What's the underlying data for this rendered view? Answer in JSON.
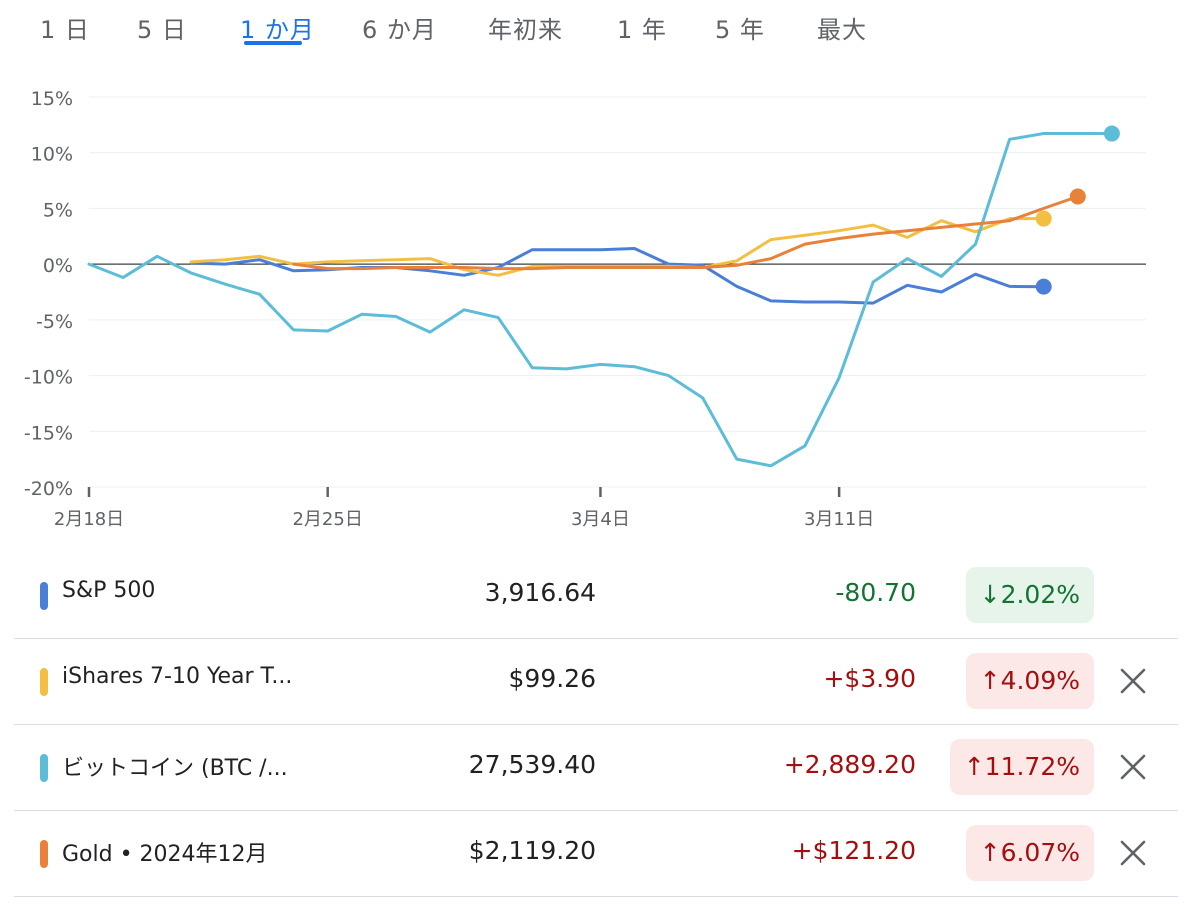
{
  "tabs": {
    "items": [
      "1 日",
      "5 日",
      "1 か月",
      "6 か月",
      "年初来",
      "1 年",
      "5 年",
      "最大"
    ],
    "active_index": 2
  },
  "chart_data": {
    "type": "line",
    "title": "",
    "xlabel": "",
    "ylabel": "",
    "ylim": [
      -20,
      15
    ],
    "yticks": [
      15,
      10,
      5,
      0,
      -5,
      -10,
      -15,
      -20
    ],
    "ytick_labels": [
      "15%",
      "10%",
      "5%",
      "0%",
      "-5%",
      "-10%",
      "-15%",
      "-20%"
    ],
    "xlim": [
      "2024-02-18",
      "2024-03-20"
    ],
    "xticks": [
      "2024-02-18",
      "2024-02-25",
      "2024-03-04",
      "2024-03-11"
    ],
    "xtick_labels": [
      "2月18日",
      "2月25日",
      "3月4日",
      "3月11日"
    ],
    "grid": true,
    "legend": "table below chart",
    "series": [
      {
        "name": "S&P 500",
        "color": "#4a7fd8",
        "x": [
          "2024-02-21",
          "2024-02-22",
          "2024-02-23",
          "2024-02-24",
          "2024-02-25",
          "2024-02-26",
          "2024-02-27",
          "2024-02-28",
          "2024-02-29",
          "2024-03-01",
          "2024-03-02",
          "2024-03-03",
          "2024-03-04",
          "2024-03-05",
          "2024-03-06",
          "2024-03-07",
          "2024-03-08",
          "2024-03-09",
          "2024-03-10",
          "2024-03-11",
          "2024-03-12",
          "2024-03-13",
          "2024-03-14",
          "2024-03-15",
          "2024-03-16",
          "2024-03-17"
        ],
        "y": [
          0.1,
          0,
          0.4,
          -0.6,
          -0.5,
          -0.3,
          -0.3,
          -0.6,
          -1.0,
          -0.3,
          1.3,
          1.3,
          1.3,
          1.4,
          0,
          -0.1,
          -2.0,
          -3.3,
          -3.4,
          -3.4,
          -3.5,
          -1.9,
          -2.5,
          -0.9,
          -2.0,
          -2.02
        ]
      },
      {
        "name": "iShares 7-10 Year T...",
        "color": "#f2bf42",
        "x": [
          "2024-02-21",
          "2024-02-22",
          "2024-02-23",
          "2024-02-24",
          "2024-02-25",
          "2024-02-26",
          "2024-02-27",
          "2024-02-28",
          "2024-02-29",
          "2024-03-01",
          "2024-03-02",
          "2024-03-03",
          "2024-03-04",
          "2024-03-05",
          "2024-03-06",
          "2024-03-07",
          "2024-03-08",
          "2024-03-09",
          "2024-03-10",
          "2024-03-11",
          "2024-03-12",
          "2024-03-13",
          "2024-03-14",
          "2024-03-15",
          "2024-03-16",
          "2024-03-17"
        ],
        "y": [
          0.2,
          0.4,
          0.7,
          0,
          0.2,
          0.3,
          0.4,
          0.5,
          -0.5,
          -1.0,
          -0.2,
          -0.2,
          -0.2,
          -0.2,
          -0.2,
          -0.3,
          0.3,
          2.2,
          2.6,
          3.0,
          3.5,
          2.4,
          3.9,
          2.9,
          4.09,
          4.09
        ]
      },
      {
        "name": "ビットコイン (BTC /...",
        "color": "#5dbcd8",
        "x": [
          "2024-02-18",
          "2024-02-19",
          "2024-02-20",
          "2024-02-21",
          "2024-02-22",
          "2024-02-23",
          "2024-02-24",
          "2024-02-25",
          "2024-02-26",
          "2024-02-27",
          "2024-02-28",
          "2024-02-29",
          "2024-03-01",
          "2024-03-02",
          "2024-03-03",
          "2024-03-04",
          "2024-03-05",
          "2024-03-06",
          "2024-03-07",
          "2024-03-08",
          "2024-03-09",
          "2024-03-10",
          "2024-03-11",
          "2024-03-12",
          "2024-03-13",
          "2024-03-14",
          "2024-03-15",
          "2024-03-16",
          "2024-03-17",
          "2024-03-18",
          "2024-03-19"
        ],
        "y": [
          0,
          -1.2,
          0.7,
          -0.8,
          -1.8,
          -2.7,
          -5.9,
          -6.0,
          -4.5,
          -4.7,
          -6.1,
          -4.1,
          -4.8,
          -9.3,
          -9.4,
          -9.0,
          -9.2,
          -10.0,
          -12.0,
          -17.5,
          -18.1,
          -16.3,
          -10.2,
          -1.6,
          0.5,
          -1.1,
          1.8,
          11.2,
          11.72,
          11.72,
          11.72
        ]
      },
      {
        "name": "Gold • 2024年12月",
        "color": "#e8823a",
        "x": [
          "2024-02-24",
          "2024-02-25",
          "2024-02-26",
          "2024-02-27",
          "2024-02-28",
          "2024-02-29",
          "2024-03-01",
          "2024-03-02",
          "2024-03-03",
          "2024-03-04",
          "2024-03-05",
          "2024-03-06",
          "2024-03-07",
          "2024-03-08",
          "2024-03-09",
          "2024-03-10",
          "2024-03-11",
          "2024-03-12",
          "2024-03-13",
          "2024-03-14",
          "2024-03-15",
          "2024-03-16",
          "2024-03-17",
          "2024-03-18"
        ],
        "y": [
          0,
          -0.4,
          -0.4,
          -0.3,
          -0.3,
          -0.3,
          -0.4,
          -0.4,
          -0.3,
          -0.3,
          -0.3,
          -0.3,
          -0.3,
          -0.1,
          0.5,
          1.8,
          2.3,
          2.7,
          3.0,
          3.3,
          3.6,
          3.9,
          5.0,
          6.07
        ]
      }
    ]
  },
  "quotes": [
    {
      "name": "S&P 500",
      "price": "3,916.64",
      "change": "-80.70",
      "percent": "2.02%",
      "direction": "down",
      "arrow": "↓",
      "color": "#4a7fd8",
      "removable": false
    },
    {
      "name": "iShares 7-10 Year T...",
      "price": "$99.26",
      "change": "+$3.90",
      "percent": "4.09%",
      "direction": "up",
      "arrow": "↑",
      "color": "#f2bf42",
      "removable": true
    },
    {
      "name": "ビットコイン (BTC /...",
      "price": "27,539.40",
      "change": "+2,889.20",
      "percent": "11.72%",
      "direction": "up",
      "arrow": "↑",
      "color": "#5dbcd8",
      "removable": true
    },
    {
      "name": "Gold • 2024年12月",
      "price": "$2,119.20",
      "change": "+$121.20",
      "percent": "6.07%",
      "direction": "up",
      "arrow": "↑",
      "color": "#e8823a",
      "removable": true
    }
  ],
  "icons": {
    "remove": "close-icon",
    "up": "arrow-up-icon",
    "down": "arrow-down-icon"
  }
}
